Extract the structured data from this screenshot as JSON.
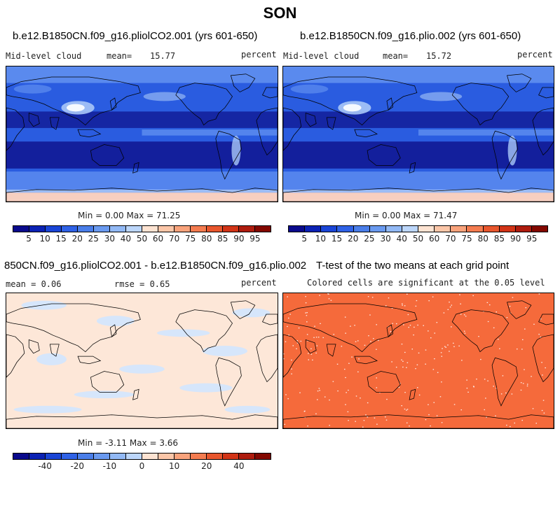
{
  "title": "SON",
  "panels": [
    {
      "title": "b.e12.B1850CN.f09_g16.pliolCO2.001 (yrs 601-650)",
      "left_label": "Mid-level cloud",
      "mean_label": "mean=",
      "mean_value": "15.77",
      "units": "percent",
      "min_max": "Min =   0.00 Max =  71.25"
    },
    {
      "title": "b.e12.B1850CN.f09_g16.plio.002 (yrs 601-650)",
      "left_label": "Mid-level cloud",
      "mean_label": "mean=",
      "mean_value": "15.72",
      "units": "percent",
      "min_max": "Min =   0.00 Max =  71.47"
    },
    {
      "title": "850CN.f09_g16.pliolCO2.001 - b.e12.B1850CN.f09_g16.plio.002",
      "mean_text": "mean =   0.06",
      "rmse_text": "rmse =   0.65",
      "units": "percent",
      "min_max": "Min =  -3.11 Max =   3.66"
    },
    {
      "title": "T-test of the two means at each grid point",
      "subtitle": "Colored cells are significant at the 0.05 level"
    }
  ],
  "colorbar_abs": {
    "colors": [
      "#0a0a8c",
      "#0b22b4",
      "#1a45d6",
      "#2f62e6",
      "#4a7ee9",
      "#6a9af0",
      "#92b9f5",
      "#bcd6fa",
      "#fde3d2",
      "#fbc6a8",
      "#f9a37c",
      "#f47c50",
      "#e8562d",
      "#d23417",
      "#ae1c0e",
      "#830800"
    ],
    "labels": [
      "5",
      "10",
      "15",
      "20",
      "25",
      "30",
      "40",
      "50",
      "60",
      "70",
      "75",
      "80",
      "85",
      "90",
      "95"
    ]
  },
  "colorbar_diff": {
    "colors": [
      "#0a0a8c",
      "#0b22b4",
      "#1a45d6",
      "#2f62e6",
      "#4a7ee9",
      "#6a9af0",
      "#92b9f5",
      "#bcd6fa",
      "#fde3d2",
      "#fbc6a8",
      "#f9a37c",
      "#f47c50",
      "#e8562d",
      "#d23417",
      "#ae1c0e",
      "#830800"
    ],
    "labels": [
      "-40",
      "-20",
      "-10",
      "0",
      "10",
      "20",
      "40"
    ]
  },
  "map_colors": {
    "ocean_low": "#0f148f",
    "mid": "#2a5ce0",
    "light": "#5f8ff0",
    "pale": "#a9c7f7",
    "white": "#ffffff",
    "antarctic": "#f7cfc0",
    "diff_pos": "#fde7d8",
    "diff_neg": "#d6e6fb",
    "ttest": "#f56a3b"
  }
}
